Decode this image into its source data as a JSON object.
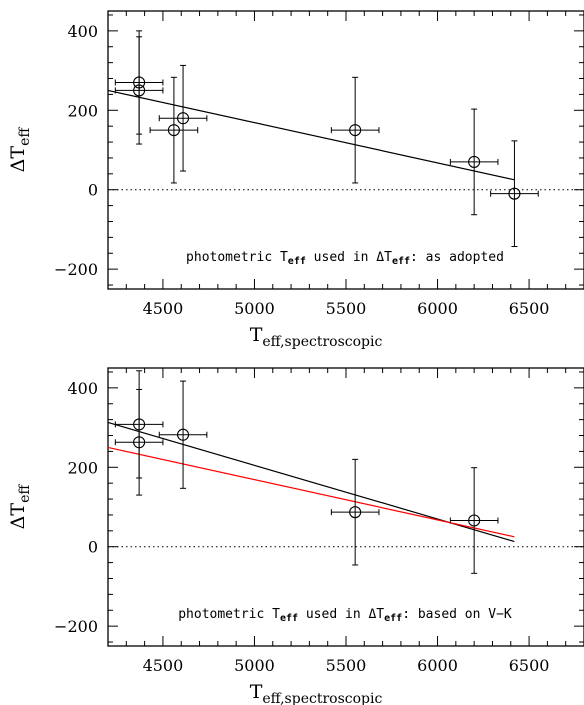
{
  "chart_data": [
    {
      "type": "scatter",
      "xlabel": {
        "main": "T",
        "sub": "eff,spectroscopic"
      },
      "ylabel": {
        "main": "ΔT",
        "sub": "eff"
      },
      "xlim": [
        4200,
        6800
      ],
      "ylim": [
        -250,
        450
      ],
      "xticks": [
        4500,
        5000,
        5500,
        6000,
        6500
      ],
      "yticks": [
        -200,
        0,
        200,
        400
      ],
      "xtick_labels": [
        "4500",
        "5000",
        "5500",
        "6000",
        "6500"
      ],
      "ytick_labels": [
        "−200",
        "0",
        "200",
        "400"
      ],
      "grid": false,
      "zero_line": {
        "y": 0,
        "style": "dotted"
      },
      "annotation": [
        "photometric T",
        "eff",
        " used in ΔT",
        "eff",
        ": as adopted"
      ],
      "points": [
        {
          "x": 4370,
          "y": 270,
          "xerr": 130,
          "yerr": 130
        },
        {
          "x": 4370,
          "y": 250,
          "xerr": 130,
          "yerr": 135
        },
        {
          "x": 4560,
          "y": 150,
          "xerr": 130,
          "yerr": 133
        },
        {
          "x": 4610,
          "y": 180,
          "xerr": 130,
          "yerr": 133
        },
        {
          "x": 5550,
          "y": 150,
          "xerr": 130,
          "yerr": 133
        },
        {
          "x": 6200,
          "y": 70,
          "xerr": 130,
          "yerr": 133
        },
        {
          "x": 6420,
          "y": -10,
          "xerr": 130,
          "yerr": 133
        }
      ],
      "fit_lines": [
        {
          "color": "#000000",
          "x": [
            4200,
            6420
          ],
          "y": [
            250,
            25
          ]
        }
      ]
    },
    {
      "type": "scatter",
      "xlabel": {
        "main": "T",
        "sub": "eff,spectroscopic"
      },
      "ylabel": {
        "main": "ΔT",
        "sub": "eff"
      },
      "xlim": [
        4200,
        6800
      ],
      "ylim": [
        -250,
        450
      ],
      "xticks": [
        4500,
        5000,
        5500,
        6000,
        6500
      ],
      "yticks": [
        -200,
        0,
        200,
        400
      ],
      "xtick_labels": [
        "4500",
        "5000",
        "5500",
        "6000",
        "6500"
      ],
      "ytick_labels": [
        "−200",
        "0",
        "200",
        "400"
      ],
      "grid": false,
      "zero_line": {
        "y": 0,
        "style": "dotted"
      },
      "annotation": [
        "photometric T",
        "eff",
        " used in ΔT",
        "eff",
        ": based on V−K"
      ],
      "points": [
        {
          "x": 4370,
          "y": 308,
          "xerr": 130,
          "yerr": 135
        },
        {
          "x": 4370,
          "y": 263,
          "xerr": 130,
          "yerr": 133
        },
        {
          "x": 4610,
          "y": 282,
          "xerr": 130,
          "yerr": 135
        },
        {
          "x": 5550,
          "y": 87,
          "xerr": 130,
          "yerr": 133
        },
        {
          "x": 6200,
          "y": 66,
          "xerr": 130,
          "yerr": 133
        }
      ],
      "fit_lines": [
        {
          "color": "#000000",
          "x": [
            4200,
            6420
          ],
          "y": [
            313,
            13
          ]
        },
        {
          "color": "#ff0000",
          "x": [
            4200,
            6420
          ],
          "y": [
            250,
            25
          ]
        }
      ]
    }
  ]
}
